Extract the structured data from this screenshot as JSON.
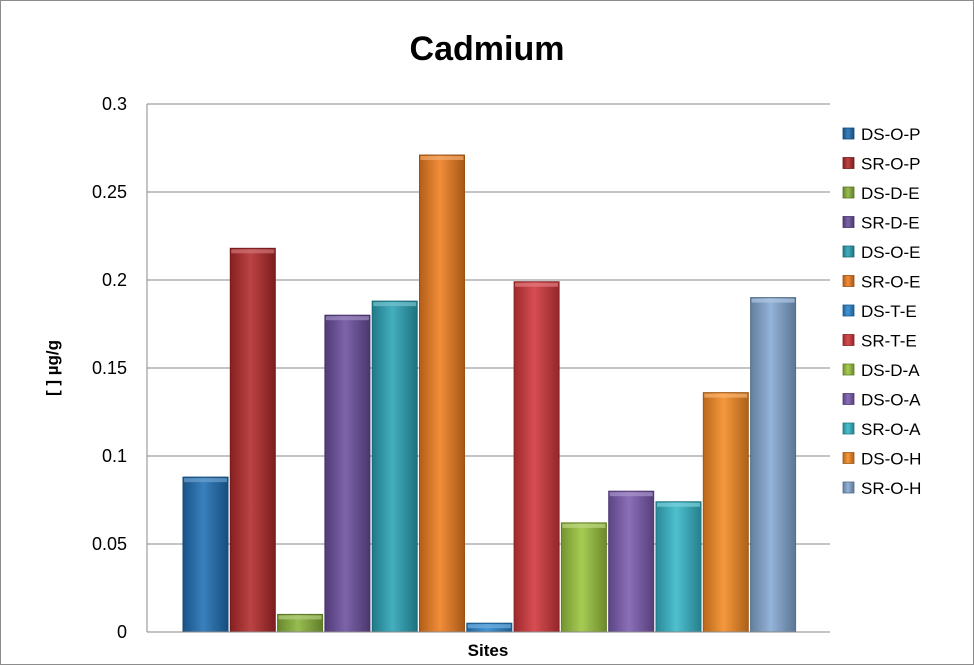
{
  "chart_data": {
    "type": "bar",
    "title": "Cadmium",
    "xlabel": "Sites",
    "ylabel": "[ ] µg/g",
    "ylim": [
      0,
      0.3
    ],
    "yticks": [
      "0",
      "0.05",
      "0.1",
      "0.15",
      "0.2",
      "0.25",
      "0.3"
    ],
    "grid": true,
    "legend_position": "right",
    "series": [
      {
        "name": "DS-O-P",
        "value": 0.088,
        "color": "#1f6fb4"
      },
      {
        "name": "SR-O-P",
        "value": 0.218,
        "color": "#b3292b"
      },
      {
        "name": "DS-D-E",
        "value": 0.01,
        "color": "#8ab43a"
      },
      {
        "name": "SR-D-E",
        "value": 0.18,
        "color": "#6b4f9e"
      },
      {
        "name": "DS-O-E",
        "value": 0.188,
        "color": "#2aa3b5"
      },
      {
        "name": "SR-O-E",
        "value": 0.271,
        "color": "#ef7d1f"
      },
      {
        "name": "DS-T-E",
        "value": 0.005,
        "color": "#2a86d0"
      },
      {
        "name": "SR-T-E",
        "value": 0.199,
        "color": "#d2363a"
      },
      {
        "name": "DS-D-A",
        "value": 0.062,
        "color": "#9bc53e"
      },
      {
        "name": "DS-O-A",
        "value": 0.08,
        "color": "#7b5bb0"
      },
      {
        "name": "SR-O-A",
        "value": 0.074,
        "color": "#36b7c9"
      },
      {
        "name": "DS-O-H",
        "value": 0.136,
        "color": "#f58a22"
      },
      {
        "name": "SR-O-H",
        "value": 0.19,
        "color": "#84a9d3"
      }
    ]
  }
}
